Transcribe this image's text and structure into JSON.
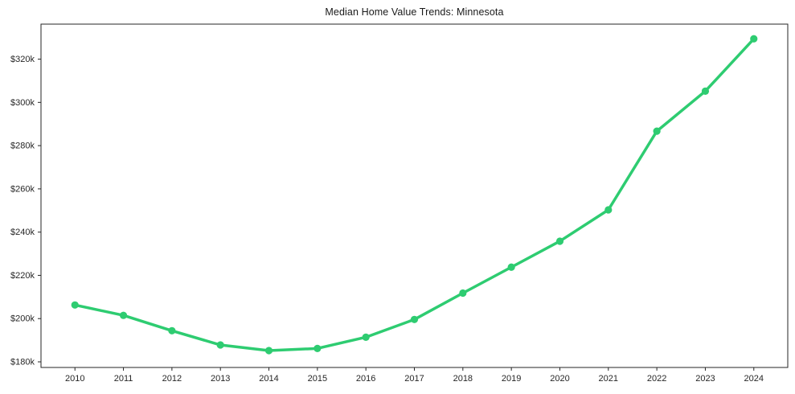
{
  "chart_data": {
    "type": "line",
    "title": "Median Home Value Trends: Minnesota",
    "xlabel": "",
    "ylabel": "",
    "x": [
      2010,
      2011,
      2012,
      2013,
      2014,
      2015,
      2016,
      2017,
      2018,
      2019,
      2020,
      2021,
      2022,
      2023,
      2024
    ],
    "series": [
      {
        "name": "Median Home Value",
        "values_usd_thousands": [
          206.3,
          201.5,
          194.4,
          187.8,
          185.2,
          186.2,
          191.4,
          199.6,
          211.8,
          223.8,
          235.8,
          250.3,
          286.7,
          305.2,
          329.4
        ]
      }
    ],
    "x_tick_labels": [
      "2010",
      "2011",
      "2012",
      "2013",
      "2014",
      "2015",
      "2016",
      "2017",
      "2018",
      "2019",
      "2020",
      "2021",
      "2022",
      "2023",
      "2024"
    ],
    "y_tick_labels": [
      "$180k",
      "$200k",
      "$220k",
      "$240k",
      "$260k",
      "$280k",
      "$300k",
      "$320k"
    ],
    "y_tick_values": [
      180,
      200,
      220,
      240,
      260,
      280,
      300,
      320
    ],
    "xlim": [
      2009.3,
      2024.7
    ],
    "ylim": [
      177.4,
      336.2
    ],
    "grid": false,
    "legend_position": "none",
    "colors": {
      "line": "#2ecc71",
      "marker": "#2ecc71",
      "spine": "#262626",
      "tick_text": "#262626",
      "title_text": "#1a1a1a",
      "background": "#ffffff"
    }
  }
}
